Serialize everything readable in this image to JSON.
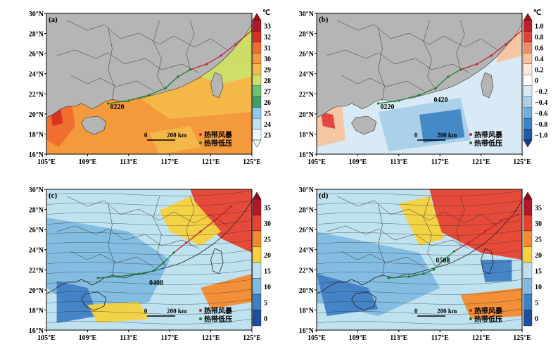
{
  "panels": [
    {
      "label": "(a)",
      "colorbar": {
        "unit": "℃",
        "ticks": [
          "33",
          "32",
          "31",
          "30",
          "29",
          "28",
          "27",
          "26",
          "25",
          "24",
          "23"
        ],
        "colors": [
          "#b2182b",
          "#d7301f",
          "#ef6c2f",
          "#f39a3d",
          "#f6b84a",
          "#cbe06a",
          "#6cc36b",
          "#3fa06a",
          "#8ec9ea",
          "#bfe2f5",
          "#eef7fc"
        ],
        "arrow_top": "#a50f15",
        "arrow_bottom": "#f4fbff"
      },
      "track_label": "0220",
      "scale_text": "0",
      "scale_unit": "200 km",
      "legend": [
        "热带风暴",
        "热带低压"
      ]
    },
    {
      "label": "(b)",
      "colorbar": {
        "unit": "℃",
        "ticks": [
          "1.0",
          "0.8",
          "0.6",
          "0.4",
          "0.2",
          "0",
          "−0.2",
          "−0.4",
          "−0.6",
          "−0.8",
          "−1.0"
        ],
        "colors": [
          "#c0202b",
          "#e0413a",
          "#f08c66",
          "#f7c49f",
          "#fde8d8",
          "#ffffff",
          "#d8eaf6",
          "#a9cfe9",
          "#73b1db",
          "#3d86c4",
          "#2158a8"
        ],
        "arrow_top": "#a50f15",
        "arrow_bottom": "#1b3f8c"
      },
      "track_label": "0220",
      "track_label2": "0420",
      "scale_text": "0",
      "scale_unit": "200 km",
      "legend": [
        "热带风暴",
        "热带低压"
      ]
    },
    {
      "label": "(c)",
      "colorbar": {
        "unit": "",
        "ticks": [
          "35",
          "30",
          "25",
          "20",
          "15",
          "10",
          "5",
          "0"
        ],
        "colors": [
          "#b2182b",
          "#e8412e",
          "#f48a2e",
          "#f6d23c",
          "#bfe1ef",
          "#7fbbe0",
          "#3f7fc4",
          "#1e4f9e"
        ],
        "arrow_top": "#8e1020",
        "arrow_bottom": ""
      },
      "track_label": "0408",
      "scale_text": "0",
      "scale_unit": "200 km",
      "legend": [
        "热带风暴",
        "热带低压"
      ]
    },
    {
      "label": "(d)",
      "colorbar": {
        "unit": "",
        "ticks": [
          "35",
          "30",
          "25",
          "20",
          "15",
          "10",
          "5",
          "0"
        ],
        "colors": [
          "#b2182b",
          "#e8412e",
          "#f48a2e",
          "#f6d23c",
          "#bfe1ef",
          "#7fbbe0",
          "#3f7fc4",
          "#1e4f9e"
        ],
        "arrow_top": "#8e1020",
        "arrow_bottom": ""
      },
      "track_label": "0508",
      "scale_text": "0",
      "scale_unit": "200 km",
      "legend": [
        "热带风暴",
        "热带低压"
      ]
    }
  ],
  "axes": {
    "x_ticks": [
      "105°E",
      "109°E",
      "113°E",
      "117°E",
      "121°E",
      "125°E"
    ],
    "y_ticks": [
      "30°N",
      "28°N",
      "26°N",
      "24°N",
      "22°N",
      "20°N",
      "18°N",
      "16°N"
    ]
  }
}
